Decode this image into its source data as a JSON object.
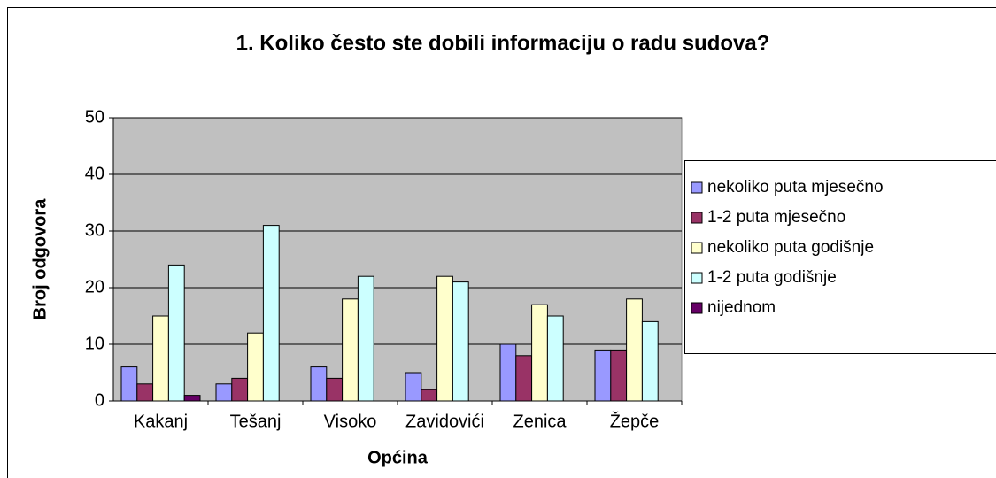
{
  "chart_data": {
    "type": "bar",
    "title": "1. Koliko često ste dobili informaciju o radu sudova?",
    "x_label": "Općina",
    "y_label": "Broj odgovora",
    "categories": [
      "Kakanj",
      "Tešanj",
      "Visoko",
      "Zavidovići",
      "Zenica",
      "Žepče"
    ],
    "series": [
      {
        "name": "nekoliko puta mjesečno",
        "color": "#9999ff",
        "values": [
          6,
          3,
          6,
          5,
          10,
          9
        ]
      },
      {
        "name": "1-2 puta mjesečno",
        "color": "#993366",
        "values": [
          3,
          4,
          4,
          2,
          8,
          9
        ]
      },
      {
        "name": "nekoliko puta godišnje",
        "color": "#ffffcc",
        "values": [
          15,
          12,
          18,
          22,
          17,
          18
        ]
      },
      {
        "name": "1-2 puta godišnje",
        "color": "#ccffff",
        "values": [
          24,
          31,
          22,
          21,
          15,
          14
        ]
      },
      {
        "name": "nijednom",
        "color": "#660066",
        "values": [
          1,
          0,
          0,
          0,
          0,
          0
        ]
      }
    ],
    "ylim": [
      0,
      50
    ],
    "yticks": [
      0,
      10,
      20,
      30,
      40,
      50
    ],
    "grid": true,
    "plot_background": "#c0c0c0",
    "legend": "right"
  }
}
